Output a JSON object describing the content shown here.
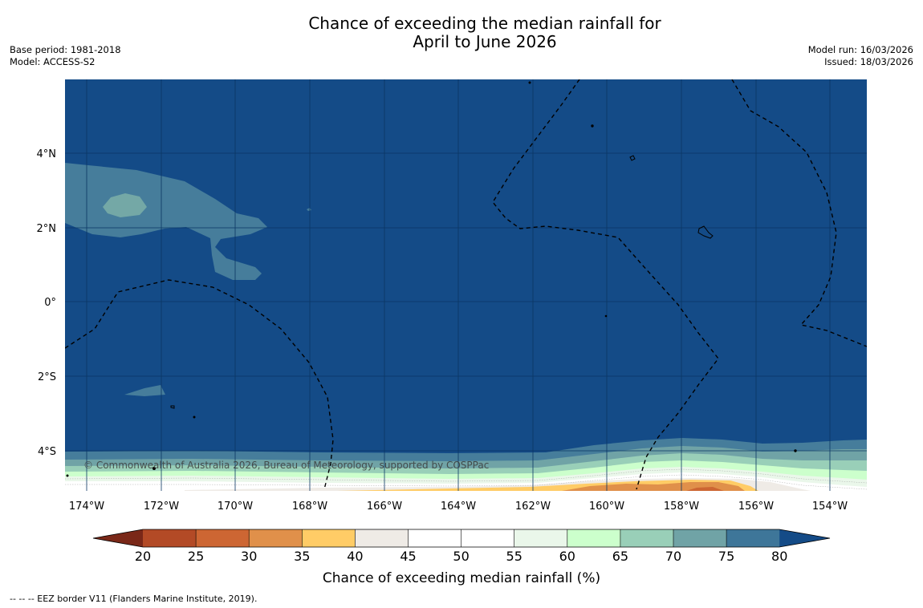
{
  "title": {
    "line1": "Chance of exceeding the median rainfall for",
    "line2": "April to June 2026"
  },
  "meta_left": {
    "base_period": "Base period: 1981-2018",
    "model": "Model: ACCESS-S2"
  },
  "meta_right": {
    "model_run": "Model run: 16/03/2026",
    "issued": "Issued: 18/03/2026"
  },
  "map": {
    "ocean_color": "#144b87",
    "longitude_labels": [
      "174°W",
      "172°W",
      "170°W",
      "168°W",
      "166°W",
      "164°W",
      "162°W",
      "160°W",
      "158°W",
      "156°W",
      "154°W"
    ],
    "latitude_labels": [
      "4°N",
      "2°N",
      "0°",
      "2°S",
      "4°S"
    ],
    "copyright": "© Commonwealth of Australia 2026, Bureau of Meteorology, supported by COSPPac"
  },
  "colorbar": {
    "title": "Chance of exceeding median rainfall (%)",
    "ticks": [
      "20",
      "25",
      "30",
      "35",
      "40",
      "45",
      "50",
      "55",
      "60",
      "65",
      "70",
      "75",
      "80"
    ],
    "colors": [
      "#b34a26",
      "#cd6633",
      "#e0904a",
      "#ffcc66",
      "#efebe6",
      "#ffffff",
      "#ffffff",
      "#eaf7ea",
      "#ccffcc",
      "#99cfb8",
      "#70a3a6",
      "#3e7699"
    ],
    "under_color": "#7a2818",
    "over_color": "#144b87"
  },
  "footnote": "--  --  -- EEZ border V11 (Flanders Marine Institute, 2019)."
}
